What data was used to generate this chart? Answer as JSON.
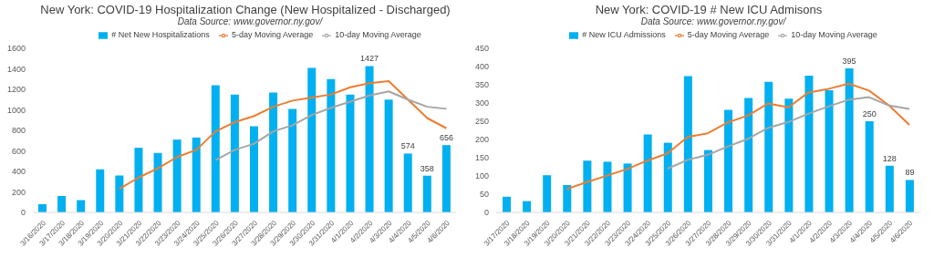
{
  "chart_data": [
    {
      "type": "bar",
      "title": "New York: COVID-19 Hospitalization Change (New Hospitalized - Discharged)",
      "subtitle": "Data Source: www.governor.ny.gov/",
      "categories": [
        "3/16/2020",
        "3/17/2020",
        "3/18/2020",
        "3/19/2020",
        "3/20/2020",
        "3/21/2020",
        "3/22/2020",
        "3/23/2020",
        "3/24/2020",
        "3/25/2020",
        "3/26/2020",
        "3/27/2020",
        "3/28/2020",
        "3/29/2020",
        "3/30/2020",
        "3/31/2020",
        "4/1/2020",
        "4/2/2020",
        "4/3/2020",
        "4/4/2020",
        "4/5/2020",
        "4/6/2020"
      ],
      "series": [
        {
          "name": "# Net New Hospitalizations",
          "color": "#00b0f0",
          "values": [
            80,
            160,
            120,
            420,
            360,
            630,
            580,
            710,
            730,
            1240,
            1150,
            840,
            1170,
            1010,
            1410,
            1300,
            1150,
            1427,
            1100,
            574,
            358,
            656
          ],
          "value_labels": [
            null,
            null,
            null,
            null,
            null,
            null,
            null,
            null,
            null,
            null,
            null,
            null,
            null,
            null,
            null,
            null,
            null,
            "1427",
            null,
            "574",
            "358",
            "656"
          ]
        },
        {
          "name": "5-day Moving Average",
          "type": "line",
          "color": "#ed7d31",
          "values": [
            null,
            null,
            null,
            null,
            230,
            340,
            430,
            540,
            610,
            790,
            880,
            940,
            1030,
            1090,
            1120,
            1150,
            1220,
            1260,
            1280,
            1100,
            920,
            820
          ]
        },
        {
          "name": "10-day Moving Average",
          "type": "line",
          "color": "#a5a5a5",
          "values": [
            null,
            null,
            null,
            null,
            null,
            null,
            null,
            null,
            null,
            510,
            610,
            670,
            790,
            850,
            950,
            1020,
            1080,
            1140,
            1180,
            1100,
            1030,
            1010
          ]
        }
      ],
      "ylim": [
        0,
        1600
      ],
      "yticks": [
        0,
        200,
        400,
        600,
        800,
        1000,
        1200,
        1400,
        1600
      ],
      "grid": false,
      "legend": "top",
      "marker": "none"
    },
    {
      "type": "bar",
      "title": "New York: COVID-19 # New ICU Admisons",
      "subtitle": "Data Source: www.governor.ny.gov/",
      "categories": [
        "3/17/2020",
        "3/18/2020",
        "3/19/2020",
        "3/20/2020",
        "3/21/2020",
        "3/22/2020",
        "3/23/2020",
        "3/24/2020",
        "3/25/2020",
        "3/26/2020",
        "3/27/2020",
        "3/28/2020",
        "3/29/2020",
        "3/30/2020",
        "3/31/2020",
        "4/1/2020",
        "4/2/2020",
        "4/3/2020",
        "4/4/2020",
        "4/5/2020",
        "4/6/2020"
      ],
      "series": [
        {
          "name": "# New ICU Admissions",
          "color": "#00b0f0",
          "values": [
            43,
            31,
            102,
            75,
            142,
            139,
            134,
            214,
            191,
            374,
            171,
            281,
            314,
            358,
            312,
            375,
            335,
            395,
            250,
            128,
            89
          ],
          "value_labels": [
            null,
            null,
            null,
            null,
            null,
            null,
            null,
            null,
            null,
            null,
            null,
            null,
            null,
            null,
            null,
            null,
            null,
            "395",
            "250",
            "128",
            "89"
          ]
        },
        {
          "name": "5-day Moving Average",
          "type": "line",
          "color": "#ed7d31",
          "values": [
            null,
            null,
            null,
            64,
            83,
            101,
            119,
            142,
            162,
            207,
            217,
            247,
            266,
            299,
            288,
            329,
            339,
            353,
            334,
            293,
            240
          ]
        },
        {
          "name": "10-day Moving Average",
          "type": "line",
          "color": "#a5a5a5",
          "values": [
            null,
            null,
            null,
            null,
            null,
            null,
            null,
            null,
            120,
            144,
            158,
            181,
            202,
            232,
            248,
            271,
            291,
            309,
            316,
            293,
            284
          ]
        }
      ],
      "ylim": [
        0,
        450
      ],
      "yticks": [
        0,
        50,
        100,
        150,
        200,
        250,
        300,
        350,
        400,
        450
      ],
      "grid": false,
      "legend": "top",
      "marker": "none"
    }
  ]
}
